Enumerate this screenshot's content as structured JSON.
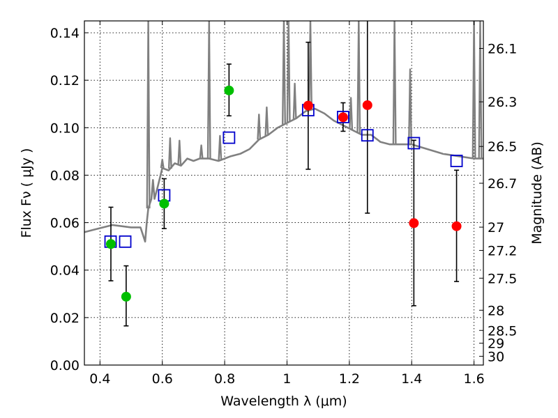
{
  "chart_data": {
    "type": "scatter",
    "xlabel": "Wavelength  λ (μm)",
    "ylabel": "Flux  Fν  ( μJy )",
    "ylabel_right": "Magnitude (AB)",
    "xlim": [
      0.35,
      1.63
    ],
    "ylim": [
      0.0,
      0.145
    ],
    "grid": true,
    "x_ticks": [
      0.4,
      0.6,
      0.8,
      1.0,
      1.2,
      1.4,
      1.6
    ],
    "x_tick_labels": [
      "0.4",
      "0.6",
      "0.8",
      "1",
      "1.2",
      "1.4",
      "1.6"
    ],
    "y_ticks": [
      0.0,
      0.02,
      0.04,
      0.06,
      0.08,
      0.1,
      0.12,
      0.14
    ],
    "y_tick_labels": [
      "0.00",
      "0.02",
      "0.04",
      "0.06",
      "0.08",
      "0.10",
      "0.12",
      "0.14"
    ],
    "right_ticks": [
      {
        "label": "26.1",
        "flux": 0.1334
      },
      {
        "label": "26.3",
        "flux": 0.1109
      },
      {
        "label": "26.5",
        "flux": 0.0921
      },
      {
        "label": "26.7",
        "flux": 0.0766
      },
      {
        "label": "27",
        "flux": 0.0581
      },
      {
        "label": "27.2",
        "flux": 0.0483
      },
      {
        "label": "27.5",
        "flux": 0.0366
      },
      {
        "label": "28",
        "flux": 0.0231
      },
      {
        "label": "28.5",
        "flux": 0.0146
      },
      {
        "label": "29",
        "flux": 0.0092
      },
      {
        "label": "30",
        "flux": 0.0037
      }
    ],
    "series": [
      {
        "name": "model spectrum",
        "kind": "line",
        "color": "#808080",
        "points": [
          [
            0.35,
            0.056
          ],
          [
            0.38,
            0.057
          ],
          [
            0.41,
            0.058
          ],
          [
            0.44,
            0.059
          ],
          [
            0.47,
            0.0585
          ],
          [
            0.5,
            0.058
          ],
          [
            0.53,
            0.058
          ],
          [
            0.545,
            0.052
          ],
          [
            0.55,
            0.06
          ],
          [
            0.555,
            0.066
          ],
          [
            0.56,
            0.068
          ],
          [
            0.565,
            0.07
          ],
          [
            0.57,
            0.078
          ],
          [
            0.575,
            0.07
          ],
          [
            0.585,
            0.075
          ],
          [
            0.6,
            0.083
          ],
          [
            0.62,
            0.082
          ],
          [
            0.64,
            0.085
          ],
          [
            0.66,
            0.084
          ],
          [
            0.68,
            0.087
          ],
          [
            0.7,
            0.086
          ],
          [
            0.72,
            0.087
          ],
          [
            0.75,
            0.087
          ],
          [
            0.78,
            0.086
          ],
          [
            0.8,
            0.087
          ],
          [
            0.82,
            0.088
          ],
          [
            0.85,
            0.089
          ],
          [
            0.88,
            0.091
          ],
          [
            0.91,
            0.095
          ],
          [
            0.94,
            0.097
          ],
          [
            0.97,
            0.1
          ],
          [
            1.0,
            0.102
          ],
          [
            1.03,
            0.104
          ],
          [
            1.06,
            0.107
          ],
          [
            1.09,
            0.108
          ],
          [
            1.12,
            0.106
          ],
          [
            1.15,
            0.103
          ],
          [
            1.18,
            0.101
          ],
          [
            1.21,
            0.099
          ],
          [
            1.24,
            0.097
          ],
          [
            1.27,
            0.097
          ],
          [
            1.3,
            0.094
          ],
          [
            1.33,
            0.093
          ],
          [
            1.36,
            0.093
          ],
          [
            1.4,
            0.093
          ],
          [
            1.45,
            0.091
          ],
          [
            1.5,
            0.089
          ],
          [
            1.55,
            0.088
          ],
          [
            1.6,
            0.087
          ],
          [
            1.63,
            0.087
          ]
        ],
        "emission_lines": [
          [
            0.555,
            0.145
          ],
          [
            0.6,
            0.086
          ],
          [
            0.625,
            0.095
          ],
          [
            0.655,
            0.094
          ],
          [
            0.725,
            0.092
          ],
          [
            0.75,
            0.145
          ],
          [
            0.785,
            0.096
          ],
          [
            0.91,
            0.105
          ],
          [
            0.935,
            0.108
          ],
          [
            0.99,
            0.145
          ],
          [
            1.005,
            0.145
          ],
          [
            1.025,
            0.118
          ],
          [
            1.075,
            0.145
          ],
          [
            1.205,
            0.112
          ],
          [
            1.23,
            0.145
          ],
          [
            1.345,
            0.145
          ],
          [
            1.395,
            0.124
          ],
          [
            1.6,
            0.145
          ],
          [
            1.62,
            0.145
          ]
        ]
      },
      {
        "name": "green points",
        "kind": "points",
        "marker": "circle",
        "color": "#00bf00",
        "points": [
          {
            "x": 0.435,
            "y": 0.051,
            "lo": 0.0355,
            "hi": 0.0665
          },
          {
            "x": 0.484,
            "y": 0.0288,
            "lo": 0.0165,
            "hi": 0.0418
          },
          {
            "x": 0.606,
            "y": 0.068,
            "lo": 0.0575,
            "hi": 0.0785
          },
          {
            "x": 0.814,
            "y": 0.1157,
            "lo": 0.105,
            "hi": 0.1268
          }
        ]
      },
      {
        "name": "red points",
        "kind": "points",
        "marker": "circle",
        "color": "#ff0000",
        "points": [
          {
            "x": 1.068,
            "y": 0.1093,
            "lo": 0.0825,
            "hi": 0.136
          },
          {
            "x": 1.18,
            "y": 0.1044,
            "lo": 0.0985,
            "hi": 0.1105
          },
          {
            "x": 1.258,
            "y": 0.1095,
            "lo": 0.064,
            "hi": 0.145
          },
          {
            "x": 1.407,
            "y": 0.0598,
            "lo": 0.025,
            "hi": 0.0947
          },
          {
            "x": 1.544,
            "y": 0.0585,
            "lo": 0.0352,
            "hi": 0.0821
          }
        ]
      },
      {
        "name": "blue squares",
        "kind": "points",
        "marker": "square",
        "color": "#0000cc",
        "points": [
          {
            "x": 0.434,
            "y": 0.052
          },
          {
            "x": 0.481,
            "y": 0.052
          },
          {
            "x": 0.606,
            "y": 0.0715
          },
          {
            "x": 0.814,
            "y": 0.0958
          },
          {
            "x": 1.068,
            "y": 0.1074
          },
          {
            "x": 1.18,
            "y": 0.1045
          },
          {
            "x": 1.258,
            "y": 0.0968
          },
          {
            "x": 1.407,
            "y": 0.0935
          },
          {
            "x": 1.544,
            "y": 0.086
          }
        ]
      }
    ]
  }
}
